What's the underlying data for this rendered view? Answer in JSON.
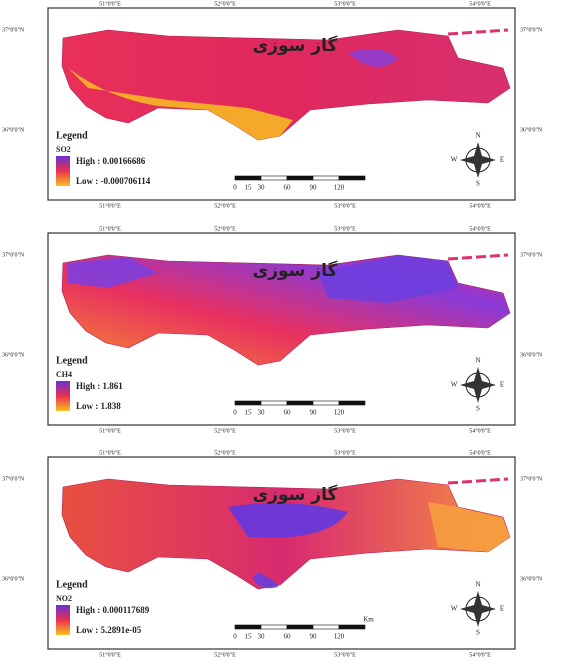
{
  "panels": [
    {
      "title": "گاز سوزی",
      "legend_title": "Legend",
      "gas": "SO2",
      "high": "High : 0.00166686",
      "low": "Low : -0.000706114",
      "top_coords": [
        "51°0'0\"E",
        "52°0'0\"E",
        "53°0'0\"E",
        "54°0'0\"E"
      ],
      "bottom_coords": [
        "51°0'0\"E",
        "52°0'0\"E",
        "53°0'0\"E",
        "54°0'0\"E"
      ],
      "left_coords": [
        "37°0'0\"N",
        "36°0'0\"N"
      ],
      "right_coords": [
        "37°0'0\"N",
        "36°0'0\"N"
      ],
      "scale_labels": [
        "0",
        "15",
        "30",
        "60",
        "90",
        "120"
      ],
      "compass": [
        "N",
        "E",
        "S",
        "W"
      ]
    },
    {
      "title": "گاز سوزی",
      "legend_title": "Legend",
      "gas": "CH4",
      "high": "High : 1.861",
      "low": "Low : 1.838",
      "top_coords": [
        "51°0'0\"E",
        "52°0'0\"E",
        "53°0'0\"E",
        "54°0'0\"E"
      ],
      "bottom_coords": [
        "51°0'0\"E",
        "52°0'0\"E",
        "53°0'0\"E",
        "54°0'0\"E"
      ],
      "left_coords": [
        "37°0'0\"N",
        "36°0'0\"N"
      ],
      "right_coords": [
        "37°0'0\"N",
        "36°0'0\"N"
      ],
      "scale_labels": [
        "0",
        "15",
        "30",
        "60",
        "90",
        "120"
      ],
      "compass": [
        "N",
        "E",
        "S",
        "W"
      ]
    },
    {
      "title": "گاز سوزی",
      "legend_title": "Legend",
      "gas": "NO2",
      "high": "High : 0.000117689",
      "low": "Low : 5.2891e-05",
      "top_coords": [
        "51°0'0\"E",
        "52°0'0\"E",
        "53°0'0\"E",
        "54°0'0\"E"
      ],
      "bottom_coords": [
        "51°0'0\"E",
        "52°0'0\"E",
        "53°0'0\"E",
        "54°0'0\"E"
      ],
      "left_coords": [
        "37°0'0\"N",
        "36°0'0\"N"
      ],
      "right_coords": [
        "37°0'0\"N",
        "36°0'0\"N"
      ],
      "scale_labels": [
        "0",
        "15",
        "30",
        "60",
        "90",
        "120",
        "Km"
      ],
      "compass": [
        "N",
        "E",
        "S",
        "W"
      ]
    }
  ]
}
